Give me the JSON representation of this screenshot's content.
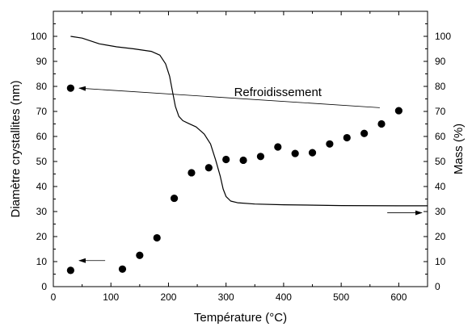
{
  "chart_data": {
    "type": "scatter",
    "xlabel": "Température (°C)",
    "ylabel": "Diamètre crystallites (nm)",
    "y2label": "Mass (%)",
    "xlim": [
      0,
      650
    ],
    "ylim": [
      0,
      110
    ],
    "y2lim": [
      0,
      110
    ],
    "xticks": [
      0,
      100,
      200,
      300,
      400,
      500,
      600
    ],
    "yticks": [
      0,
      10,
      20,
      30,
      40,
      50,
      60,
      70,
      80,
      90,
      100
    ],
    "y2ticks": [
      0,
      10,
      20,
      30,
      40,
      50,
      60,
      70,
      80,
      90,
      100
    ],
    "grid": false,
    "series": [
      {
        "kind": "scatter",
        "axis": "left",
        "x": [
          30,
          120,
          150,
          180,
          210,
          240,
          270,
          300,
          330,
          360,
          390,
          420,
          450,
          480,
          510,
          540,
          570,
          600
        ],
        "values": [
          6.5,
          7,
          12.5,
          19.5,
          35.3,
          45.5,
          47.5,
          50.8,
          50.5,
          52,
          55.8,
          53.2,
          53.5,
          57,
          59.5,
          61.2,
          65,
          70.3
        ]
      },
      {
        "kind": "scatter",
        "axis": "left",
        "x": [
          30
        ],
        "values": [
          79.3
        ]
      },
      {
        "kind": "line",
        "axis": "right",
        "x": [
          30,
          50,
          80,
          110,
          140,
          170,
          185,
          195,
          202,
          207,
          212,
          218,
          225,
          235,
          248,
          262,
          273,
          282,
          290,
          295,
          300,
          308,
          320,
          350,
          400,
          500,
          600,
          650
        ],
        "values": [
          100,
          99.3,
          97,
          95.8,
          95,
          94,
          92.5,
          89,
          84,
          78,
          72,
          68,
          66.3,
          65.2,
          63.8,
          61,
          57,
          50.5,
          44,
          39,
          36,
          34.2,
          33.5,
          33,
          32.7,
          32.4,
          32.3,
          32.3
        ]
      }
    ],
    "annotations": [
      {
        "text": "Refroidissement",
        "text_x": 390,
        "text_y": 76.2,
        "arrow_from": [
          567,
          71.5
        ],
        "arrow_to": [
          45,
          79.3
        ]
      },
      {
        "text": "",
        "arrow_from": [
          90,
          10.4
        ],
        "arrow_to": [
          45,
          10.4
        ]
      },
      {
        "text": "",
        "arrow_from": [
          580,
          29.5
        ],
        "arrow_to": [
          640,
          29.5
        ]
      }
    ]
  }
}
